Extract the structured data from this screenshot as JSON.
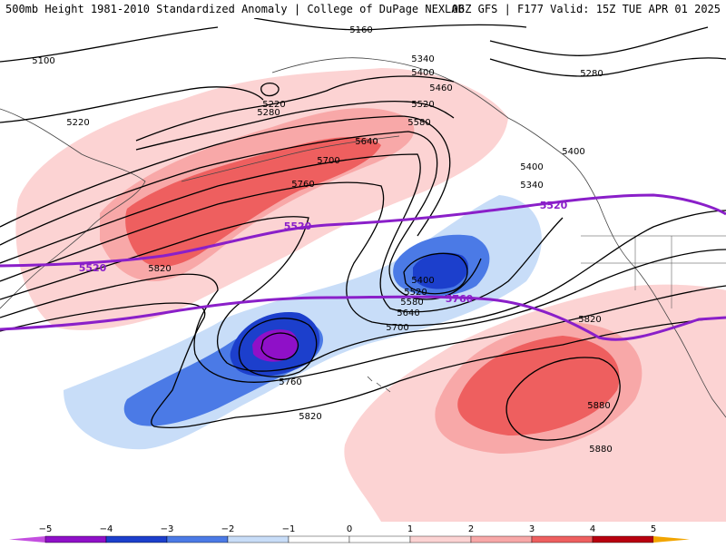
{
  "header": {
    "left_title": "500mb Height 1981-2010 Standardized Anomaly | College of DuPage NEXLAB",
    "right_title": "06Z GFS | F177 Valid: 15Z TUE APR 01 2025"
  },
  "colors": {
    "neg5": "#c44fe0",
    "neg4": "#8f10c8",
    "neg3": "#1c3fcc",
    "neg2": "#4b7ae6",
    "neg1": "#c8ddf8",
    "pos1": "#fcd3d3",
    "pos2": "#f8a8a8",
    "pos3": "#ee5f5f",
    "pos4": "#b8000f",
    "pos5": "#f2a500",
    "climo_contour": "#8a1fc9",
    "height_contour": "#000000",
    "coastline": "#444444"
  },
  "height_labels": [
    "5160",
    "5100",
    "5220",
    "5280",
    "5340",
    "5400",
    "5460",
    "5520",
    "5580",
    "5640",
    "5700",
    "5760",
    "5820",
    "5880",
    "5220",
    "5280",
    "5400",
    "5400",
    "5340",
    "5400",
    "5520",
    "5580",
    "5640",
    "5700",
    "5760",
    "5820",
    "5820",
    "5880"
  ],
  "climo_labels": [
    "5520",
    "5520",
    "5520",
    "5760"
  ],
  "colorbar": {
    "ticks": [
      "−5",
      "−4",
      "−3",
      "−2",
      "−1",
      "0",
      "1",
      "2",
      "3",
      "4",
      "5"
    ]
  }
}
